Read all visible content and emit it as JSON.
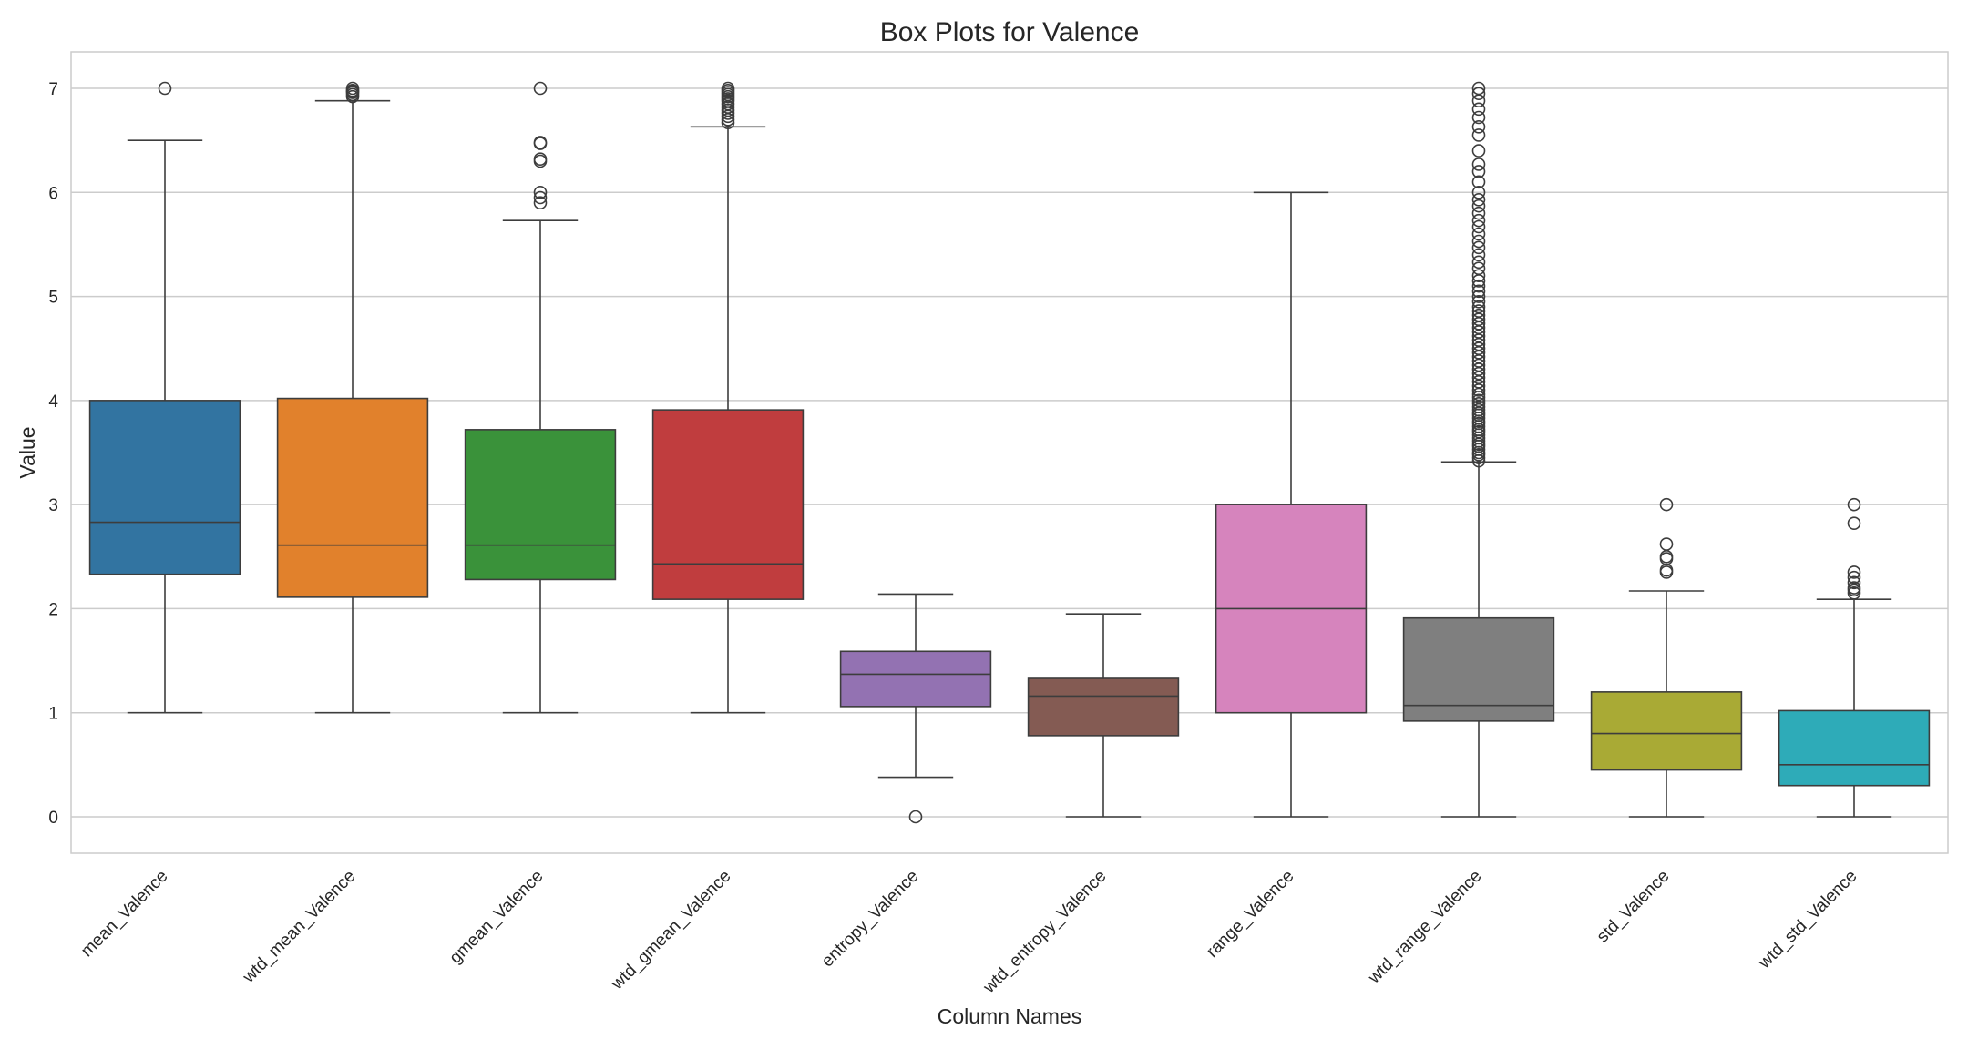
{
  "chart_data": {
    "type": "box",
    "title": "Box Plots for Valence",
    "xlabel": "Column Names",
    "ylabel": "Value",
    "ylim": [
      -0.35,
      7.35
    ],
    "yticks": [
      0,
      1,
      2,
      3,
      4,
      5,
      6,
      7
    ],
    "grid": true,
    "categories": [
      "mean_Valence",
      "wtd_mean_Valence",
      "gmean_Valence",
      "wtd_gmean_Valence",
      "entropy_Valence",
      "wtd_entropy_Valence",
      "range_Valence",
      "wtd_range_Valence",
      "std_Valence",
      "wtd_std_Valence"
    ],
    "colors": [
      "#3274a1",
      "#e1812c",
      "#3a923a",
      "#c03d3e",
      "#9372b2",
      "#845b53",
      "#d684bd",
      "#7f7f7f",
      "#a9aa35",
      "#2eabb8"
    ],
    "boxes": [
      {
        "whisker_low": 1.0,
        "q1": 2.33,
        "median": 2.83,
        "q3": 4.0,
        "whisker_high": 6.5,
        "outliers": [
          7.0
        ]
      },
      {
        "whisker_low": 1.0,
        "q1": 2.11,
        "median": 2.61,
        "q3": 4.02,
        "whisker_high": 6.88,
        "outliers": [
          6.92,
          6.94,
          6.96,
          6.97,
          6.98,
          7.0
        ]
      },
      {
        "whisker_low": 1.0,
        "q1": 2.28,
        "median": 2.61,
        "q3": 3.72,
        "whisker_high": 5.73,
        "outliers": [
          5.9,
          5.95,
          6.0,
          6.3,
          6.32,
          6.47,
          6.48,
          7.0
        ]
      },
      {
        "whisker_low": 1.0,
        "q1": 2.09,
        "median": 2.43,
        "q3": 3.91,
        "whisker_high": 6.63,
        "outliers": [
          6.67,
          6.7,
          6.73,
          6.76,
          6.79,
          6.82,
          6.85,
          6.88,
          6.9,
          6.92,
          6.94,
          6.96,
          6.98,
          7.0
        ]
      },
      {
        "whisker_low": 0.38,
        "q1": 1.06,
        "median": 1.37,
        "q3": 1.59,
        "whisker_high": 2.14,
        "outliers": [
          0.0
        ]
      },
      {
        "whisker_low": 0.0,
        "q1": 0.78,
        "median": 1.16,
        "q3": 1.33,
        "whisker_high": 1.95,
        "outliers": []
      },
      {
        "whisker_low": 0.0,
        "q1": 1.0,
        "median": 2.0,
        "q3": 3.0,
        "whisker_high": 6.0,
        "outliers": []
      },
      {
        "whisker_low": 0.0,
        "q1": 0.92,
        "median": 1.07,
        "q3": 1.91,
        "whisker_high": 3.41,
        "outliers": [
          3.42,
          3.45,
          3.48,
          3.5,
          3.53,
          3.56,
          3.58,
          3.61,
          3.64,
          3.67,
          3.7,
          3.72,
          3.75,
          3.78,
          3.8,
          3.83,
          3.86,
          3.88,
          3.91,
          3.94,
          3.97,
          4.0,
          4.03,
          4.06,
          4.1,
          4.14,
          4.18,
          4.22,
          4.26,
          4.3,
          4.34,
          4.38,
          4.42,
          4.46,
          4.5,
          4.54,
          4.58,
          4.62,
          4.66,
          4.7,
          4.74,
          4.78,
          4.82,
          4.86,
          4.9,
          4.95,
          5.0,
          5.05,
          5.1,
          5.15,
          5.2,
          5.27,
          5.33,
          5.4,
          5.47,
          5.53,
          5.6,
          5.67,
          5.73,
          5.8,
          5.87,
          5.93,
          6.0,
          6.1,
          6.2,
          6.27,
          6.4,
          6.55,
          6.63,
          6.72,
          6.8,
          6.88,
          6.95,
          7.0
        ]
      },
      {
        "whisker_low": 0.0,
        "q1": 0.45,
        "median": 0.8,
        "q3": 1.2,
        "whisker_high": 2.17,
        "outliers": [
          2.35,
          2.37,
          2.48,
          2.5,
          2.62,
          3.0
        ]
      },
      {
        "whisker_low": 0.0,
        "q1": 0.3,
        "median": 0.5,
        "q3": 1.02,
        "whisker_high": 2.09,
        "outliers": [
          2.15,
          2.18,
          2.2,
          2.25,
          2.3,
          2.35,
          2.82,
          3.0
        ]
      }
    ]
  }
}
